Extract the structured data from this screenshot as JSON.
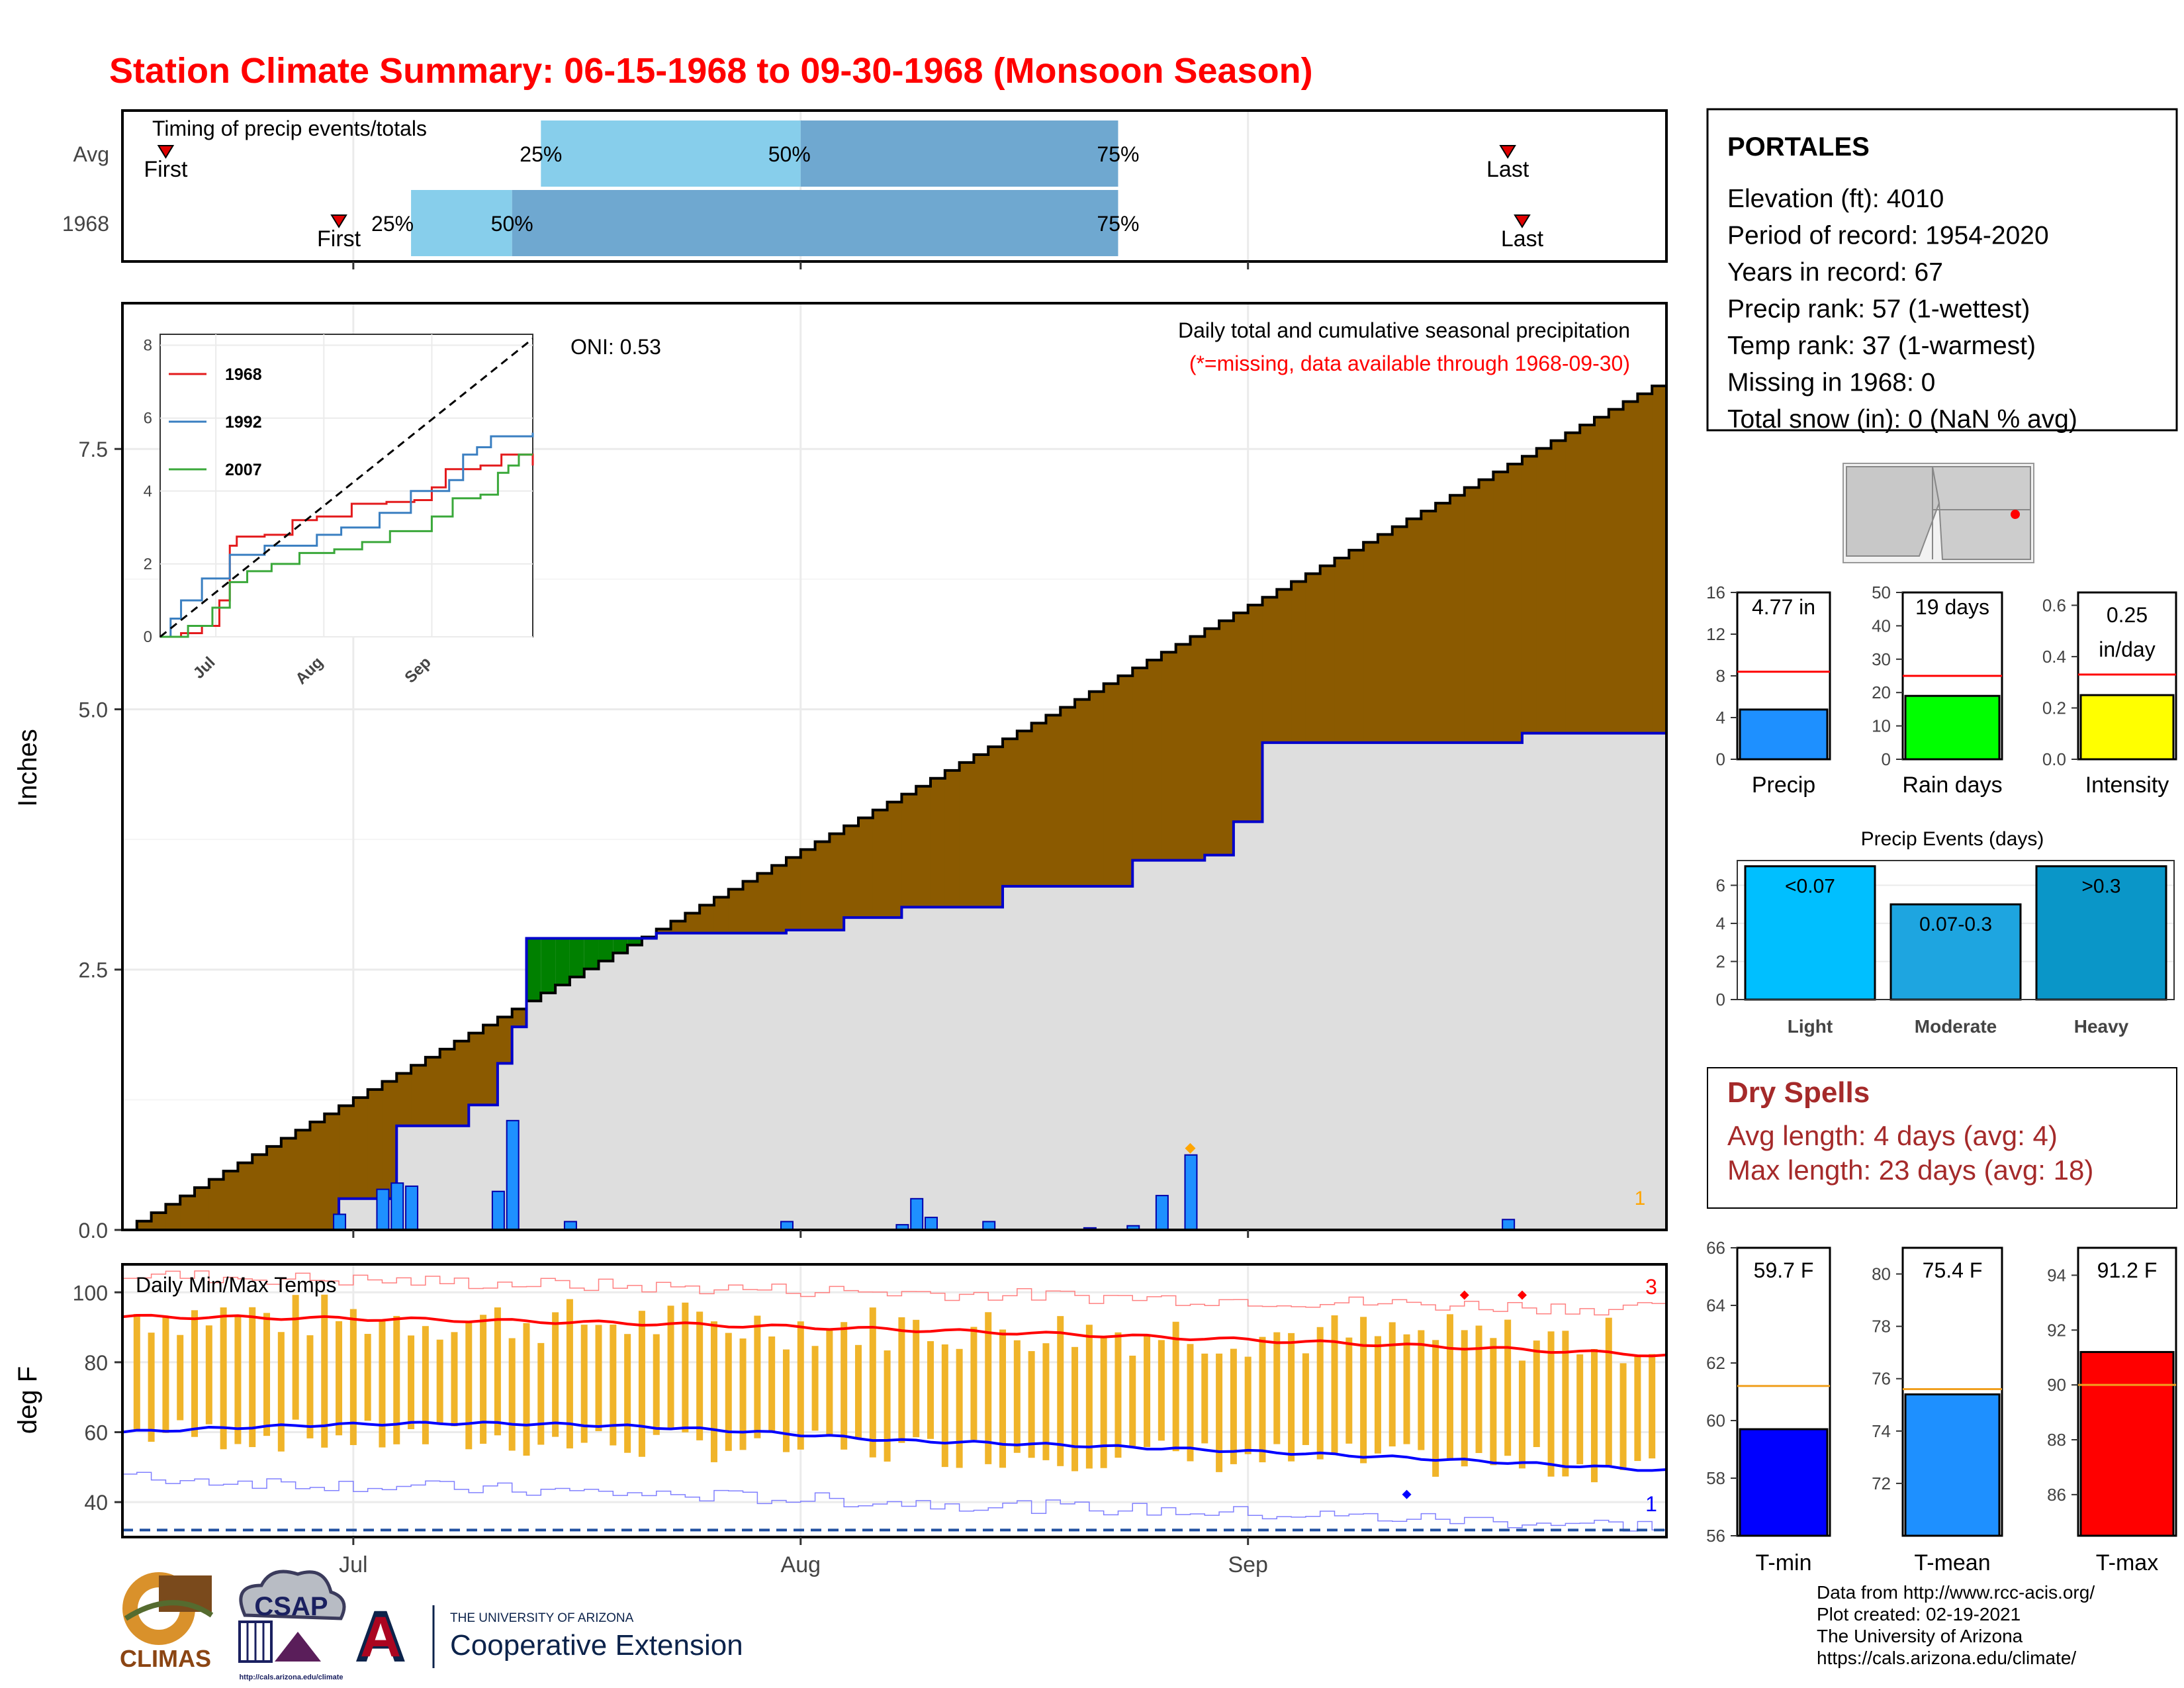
{
  "title": "Station Climate Summary: 06-15-1968 to 09-30-1968 (Monsoon Season)",
  "month_labels": [
    "Jul",
    "Aug",
    "Sep"
  ],
  "timing": {
    "label": "Timing of precip events/totals",
    "rows": [
      {
        "name": "Avg",
        "first": "First",
        "last": "Last",
        "p25": "25%",
        "p50": "50%",
        "p75": "75%",
        "first_day": 3,
        "last_day": 96,
        "q25_day": 29,
        "q50_day": 47,
        "q75_day": 69
      },
      {
        "name": "1968",
        "first": "First",
        "last": "Last",
        "p25": "25%",
        "p50": "50%",
        "p75": "75%",
        "first_day": 15,
        "last_day": 97,
        "q25_day": 20,
        "q50_day": 27,
        "q75_day": 69
      }
    ]
  },
  "precip_panel": {
    "ylabel": "Inches",
    "yticks": [
      "0.0",
      "2.5",
      "5.0",
      "7.5"
    ],
    "oni": "ONI: 0.53",
    "note1": "Daily total and cumulative seasonal precipitation",
    "note2": "(*=missing, data available through 1968-09-30)",
    "corner_count": "1"
  },
  "inset": {
    "yticks": [
      "0",
      "2",
      "4",
      "6",
      "8"
    ],
    "xticks": [
      "Jul",
      "Aug",
      "Sep"
    ],
    "legend": [
      "1968",
      "1992",
      "2007"
    ],
    "colors": [
      "#e31a1c",
      "#3a7fc1",
      "#3aa83a"
    ]
  },
  "temp_panel": {
    "ylabel": "deg F",
    "label": "Daily Min/Max Temps",
    "yticks": [
      "40",
      "60",
      "80",
      "100"
    ],
    "count_top": "3",
    "count_bottom": "1"
  },
  "station": {
    "name": "PORTALES",
    "lines": [
      "Elevation (ft): 4010",
      "Period of record: 1954-2020",
      "Years in record: 67",
      "Precip rank: 57 (1-wettest)",
      "Temp rank: 37 (1-warmest)",
      "Missing in 1968: 0",
      "Total snow (in): 0 (NaN % avg)"
    ]
  },
  "mini_bars": [
    {
      "label": "Precip",
      "value_text": "4.77 in",
      "value": 4.77,
      "avg": 8.4,
      "ymax": 16,
      "yticks": [
        "0",
        "4",
        "8",
        "12",
        "16"
      ],
      "color": "#1e90ff"
    },
    {
      "label": "Rain days",
      "value_text": "19 days",
      "value": 19,
      "avg": 25,
      "ymax": 50,
      "yticks": [
        "0",
        "10",
        "20",
        "30",
        "40",
        "50"
      ],
      "color": "#00ff00"
    },
    {
      "label": "Intensity",
      "value_text": "0.25",
      "value_text2": "in/day",
      "value": 0.25,
      "avg": 0.33,
      "ymax": 0.65,
      "yticks": [
        "0.0",
        "0.2",
        "0.4",
        "0.6"
      ],
      "color": "#ffff00"
    }
  ],
  "events": {
    "title": "Precip Events (days)",
    "yticks": [
      "0",
      "2",
      "4",
      "6"
    ],
    "bars": [
      {
        "label": "Light",
        "value_text": "<0.07",
        "value": 7,
        "color": "#00bfff"
      },
      {
        "label": "Moderate",
        "value_text": "0.07-0.3",
        "value": 5,
        "color": "#1ea5e0"
      },
      {
        "label": "Heavy",
        "value_text": ">0.3",
        "value": 7,
        "color": "#0a96c8"
      }
    ]
  },
  "dry_spells": {
    "title": "Dry Spells",
    "avg": "Avg length: 4 days (avg: 4)",
    "max": "Max length: 23 days (avg: 18)"
  },
  "temp_bars": [
    {
      "label": "T-min",
      "value_text": "59.7 F",
      "value": 59.7,
      "avg": 61.2,
      "ymin": 56,
      "ymax": 66,
      "yticks": [
        "56",
        "58",
        "60",
        "62",
        "64",
        "66"
      ],
      "color": "#0000ff"
    },
    {
      "label": "T-mean",
      "value_text": "75.4 F",
      "value": 75.4,
      "avg": 75.6,
      "ymin": 70,
      "ymax": 81,
      "yticks": [
        "72",
        "74",
        "76",
        "78",
        "80"
      ],
      "color": "#1e90ff"
    },
    {
      "label": "T-max",
      "value_text": "91.2 F",
      "value": 91.2,
      "avg": 90.0,
      "ymin": 84.5,
      "ymax": 95,
      "yticks": [
        "86",
        "88",
        "90",
        "92",
        "94"
      ],
      "color": "#ff0000"
    }
  ],
  "credits": [
    "Data from http://www.rcc-acis.org/",
    "Plot created: 02-19-2021",
    "The University of Arizona",
    "https://cals.arizona.edu/climate/"
  ],
  "logos": {
    "climas": "CLIMAS",
    "csap": "CSAP",
    "csap_url": "http://cals.arizona.edu/climate",
    "ua_line1": "THE UNIVERSITY OF ARIZONA",
    "ua_line2": "Cooperative Extension",
    "ua_letter": "A"
  },
  "chart_data": {
    "type": "area",
    "start_date": "1968-06-15",
    "end_date": "1968-09-30",
    "ylabel": "Inches",
    "ylim": [
      0,
      8.9
    ],
    "cum_1968_points": [
      [
        0,
        0
      ],
      [
        13,
        0
      ],
      [
        15,
        0.3
      ],
      [
        18,
        0.3
      ],
      [
        19,
        1.0
      ],
      [
        24,
        1.2
      ],
      [
        26,
        1.6
      ],
      [
        27,
        1.95
      ],
      [
        28,
        2.8
      ],
      [
        37,
        2.85
      ],
      [
        46,
        2.88
      ],
      [
        50,
        3.0
      ],
      [
        54,
        3.1
      ],
      [
        61,
        3.3
      ],
      [
        70,
        3.5
      ],
      [
        70,
        3.55
      ],
      [
        75,
        3.6
      ],
      [
        77,
        3.92
      ],
      [
        79,
        4.68
      ],
      [
        97,
        4.77
      ],
      [
        104,
        4.77
      ]
    ],
    "cum_avg_start": 0.0,
    "cum_avg_end": 8.18,
    "daily_bars": [
      [
        15,
        0.15
      ],
      [
        18,
        0.39
      ],
      [
        19,
        0.45
      ],
      [
        20,
        0.42
      ],
      [
        26,
        0.37
      ],
      [
        27,
        1.05
      ],
      [
        31,
        0.08
      ],
      [
        46,
        0.08
      ],
      [
        54,
        0.05
      ],
      [
        55,
        0.3
      ],
      [
        56,
        0.12
      ],
      [
        60,
        0.08
      ],
      [
        67,
        0.02
      ],
      [
        70,
        0.04
      ],
      [
        72,
        0.33
      ],
      [
        74,
        0.72
      ],
      [
        96,
        0.1
      ]
    ],
    "missing_marker_day": 74,
    "temps": {
      "ylim": [
        30,
        108
      ],
      "avg_max_start": 93,
      "avg_max_end": 82,
      "avg_min_start": 60,
      "avg_min_end": 49,
      "freeze_line": 32
    }
  }
}
